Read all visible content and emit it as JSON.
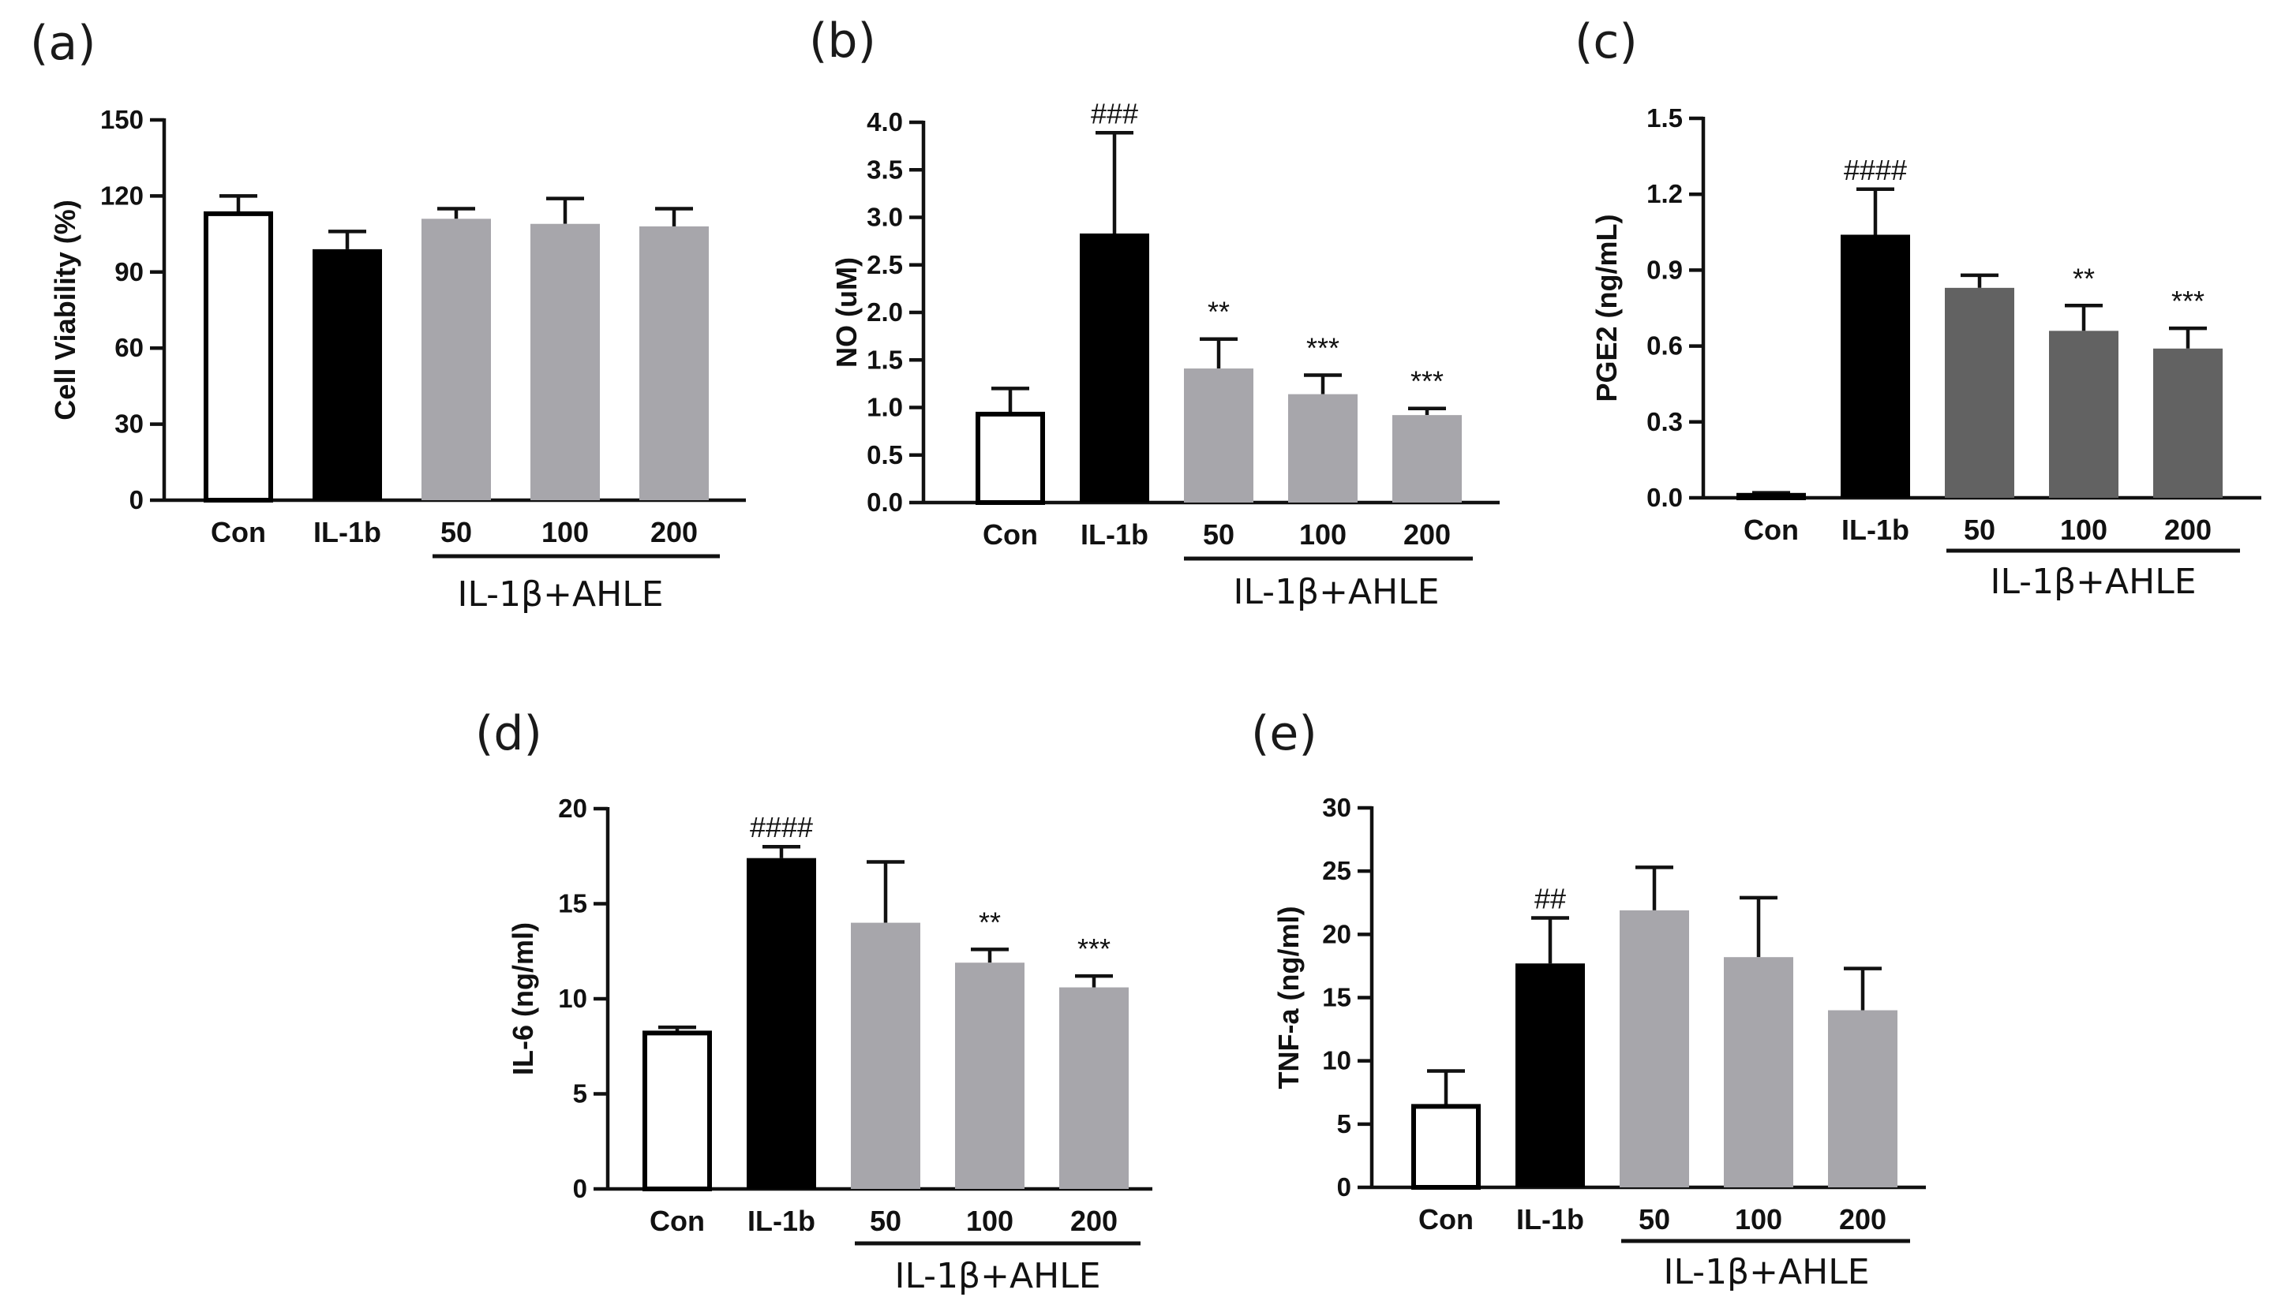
{
  "chart_data": [
    {
      "id": "a",
      "panel_label": "(a)",
      "type": "bar",
      "ylabel": "Cell Viability (%)",
      "ylim": [
        0,
        150
      ],
      "yticks": [
        "0",
        "30",
        "60",
        "90",
        "120",
        "150"
      ],
      "categories": [
        "Con",
        "IL-1b",
        "50",
        "100",
        "200"
      ],
      "group_label": "IL-1β+AHLE",
      "values": [
        113,
        99,
        111,
        109,
        108
      ],
      "errors": [
        7,
        7,
        4,
        10,
        7
      ],
      "annotations": [
        "",
        "",
        "",
        "",
        ""
      ],
      "bar_colors": [
        "#ffffff",
        "#000000",
        "#a7a6ab",
        "#a7a6ab",
        "#a7a6ab"
      ]
    },
    {
      "id": "b",
      "panel_label": "(b)",
      "type": "bar",
      "ylabel": "NO (uM)",
      "ylim": [
        0,
        4
      ],
      "yticks": [
        "0.0",
        "0.5",
        "1.0",
        "1.5",
        "2.0",
        "2.5",
        "3.0",
        "3.5",
        "4.0"
      ],
      "categories": [
        "Con",
        "IL-1b",
        "50",
        "100",
        "200"
      ],
      "group_label": "IL-1β+AHLE",
      "values": [
        0.93,
        2.83,
        1.41,
        1.14,
        0.92
      ],
      "errors": [
        0.27,
        1.06,
        0.31,
        0.2,
        0.07
      ],
      "annotations": [
        "",
        "###",
        "**",
        "***",
        "***"
      ],
      "bar_colors": [
        "#ffffff",
        "#000000",
        "#a7a6ab",
        "#a7a6ab",
        "#a7a6ab"
      ]
    },
    {
      "id": "c",
      "panel_label": "(c)",
      "type": "bar",
      "ylabel": "PGE2 (ng/mL)",
      "ylim": [
        0,
        1.5
      ],
      "yticks": [
        "0.0",
        "0.3",
        "0.6",
        "0.9",
        "1.2",
        "1.5"
      ],
      "categories": [
        "Con",
        "IL-1b",
        "50",
        "100",
        "200"
      ],
      "group_label": "IL-1β+AHLE",
      "values": [
        0.01,
        1.04,
        0.83,
        0.66,
        0.59
      ],
      "errors": [
        0.01,
        0.18,
        0.05,
        0.1,
        0.08
      ],
      "annotations": [
        "",
        "####",
        "",
        "**",
        "***"
      ],
      "bar_colors": [
        "#ffffff",
        "#000000",
        "#626262",
        "#626262",
        "#626262"
      ]
    },
    {
      "id": "d",
      "panel_label": "(d)",
      "type": "bar",
      "ylabel": "IL-6 (ng/ml)",
      "ylim": [
        0,
        20
      ],
      "yticks": [
        "0",
        "5",
        "10",
        "15",
        "20"
      ],
      "categories": [
        "Con",
        "IL-1b",
        "50",
        "100",
        "200"
      ],
      "group_label": "IL-1β+AHLE",
      "values": [
        8.2,
        17.4,
        14.0,
        11.9,
        10.6
      ],
      "errors": [
        0.3,
        0.6,
        3.2,
        0.7,
        0.6
      ],
      "annotations": [
        "",
        "####",
        "",
        "**",
        "***"
      ],
      "bar_colors": [
        "#ffffff",
        "#000000",
        "#a7a6ab",
        "#a7a6ab",
        "#a7a6ab"
      ]
    },
    {
      "id": "e",
      "panel_label": "(e)",
      "type": "bar",
      "ylabel": "TNF-a (ng/ml)",
      "ylim": [
        0,
        30
      ],
      "yticks": [
        "0",
        "5",
        "10",
        "15",
        "20",
        "25",
        "30"
      ],
      "categories": [
        "Con",
        "IL-1b",
        "50",
        "100",
        "200"
      ],
      "group_label": "IL-1β+AHLE",
      "values": [
        6.4,
        17.7,
        21.9,
        18.2,
        14.0
      ],
      "errors": [
        2.8,
        3.6,
        3.4,
        4.7,
        3.3
      ],
      "annotations": [
        "",
        "##",
        "",
        "",
        ""
      ],
      "bar_colors": [
        "#ffffff",
        "#000000",
        "#a7a6ab",
        "#a7a6ab",
        "#a7a6ab"
      ]
    }
  ]
}
